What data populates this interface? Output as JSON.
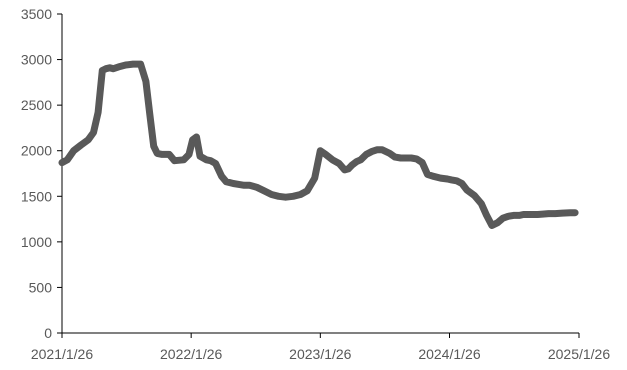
{
  "chart_data": {
    "type": "line",
    "title": "",
    "xlabel": "",
    "ylabel": "",
    "xlim": [
      "2021-01-26",
      "2025-01-26"
    ],
    "ylim": [
      0,
      3500
    ],
    "x_ticks": [
      "2021/1/26",
      "2022/1/26",
      "2023/1/26",
      "2024/1/26",
      "2025/1/26"
    ],
    "y_ticks": [
      0,
      500,
      1000,
      1500,
      2000,
      2500,
      3000,
      3500
    ],
    "grid": false,
    "legend": "none",
    "line_color": "#595959",
    "series": [
      {
        "x": [
          "2021-01-26",
          "2021-02-10",
          "2021-02-28",
          "2021-03-20",
          "2021-04-10",
          "2021-04-25",
          "2021-05-08",
          "2021-05-20",
          "2021-05-30",
          "2021-06-10",
          "2021-06-20",
          "2021-07-05",
          "2021-07-25",
          "2021-08-15",
          "2021-09-05",
          "2021-09-20",
          "2021-10-01",
          "2021-10-12",
          "2021-10-22",
          "2021-11-05",
          "2021-11-25",
          "2021-12-10",
          "2022-01-05",
          "2022-01-20",
          "2022-01-30",
          "2022-02-10",
          "2022-02-20",
          "2022-03-10",
          "2022-03-22",
          "2022-04-05",
          "2022-04-22",
          "2022-05-05",
          "2022-05-25",
          "2022-06-10",
          "2022-06-25",
          "2022-07-10",
          "2022-07-30",
          "2022-08-20",
          "2022-09-10",
          "2022-09-30",
          "2022-10-20",
          "2022-11-10",
          "2022-12-01",
          "2022-12-20",
          "2023-01-10",
          "2023-01-26",
          "2023-02-10",
          "2023-03-01",
          "2023-03-20",
          "2023-04-05",
          "2023-04-15",
          "2023-04-25",
          "2023-05-08",
          "2023-05-20",
          "2023-06-05",
          "2023-06-20",
          "2023-07-05",
          "2023-07-20",
          "2023-08-10",
          "2023-08-25",
          "2023-09-10",
          "2023-09-25",
          "2023-10-10",
          "2023-10-25",
          "2023-11-10",
          "2023-11-25",
          "2023-12-10",
          "2024-01-01",
          "2024-01-20",
          "2024-02-01",
          "2024-02-15",
          "2024-03-01",
          "2024-03-15",
          "2024-04-05",
          "2024-04-25",
          "2024-05-10",
          "2024-05-25",
          "2024-06-10",
          "2024-06-25",
          "2024-07-10",
          "2024-07-25",
          "2024-08-10",
          "2024-08-22",
          "2024-09-01",
          "2024-09-10",
          "2024-09-20",
          "2024-10-01",
          "2024-10-15",
          "2024-11-01",
          "2024-11-20",
          "2024-12-10",
          "2025-01-01",
          "2025-01-15"
        ],
        "values": [
          1870,
          1900,
          2000,
          2060,
          2120,
          2200,
          2420,
          2880,
          2900,
          2910,
          2900,
          2920,
          2940,
          2950,
          2950,
          2760,
          2400,
          2050,
          1970,
          1960,
          1960,
          1890,
          1900,
          1960,
          2120,
          2150,
          1940,
          1900,
          1890,
          1860,
          1720,
          1660,
          1640,
          1630,
          1620,
          1620,
          1600,
          1560,
          1520,
          1500,
          1490,
          1500,
          1520,
          1560,
          1700,
          2000,
          1960,
          1900,
          1860,
          1790,
          1800,
          1840,
          1880,
          1900,
          1960,
          1990,
          2010,
          2010,
          1970,
          1930,
          1920,
          1920,
          1920,
          1910,
          1870,
          1740,
          1720,
          1700,
          1690,
          1680,
          1670,
          1640,
          1570,
          1510,
          1420,
          1290,
          1180,
          1210,
          1260,
          1280,
          1290,
          1290,
          1300,
          1300,
          1300,
          1300,
          1300,
          1305,
          1310,
          1310,
          1315,
          1320,
          1320
        ]
      }
    ]
  }
}
